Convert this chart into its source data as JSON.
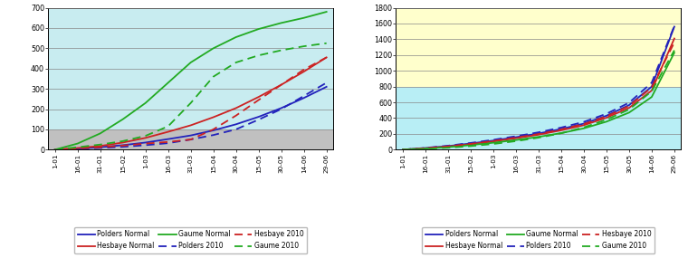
{
  "x_labels": [
    "1-01",
    "16-01",
    "31-01",
    "15-02",
    "1-03",
    "16-03",
    "31-03",
    "15-04",
    "30-04",
    "15-05",
    "30-05",
    "14-06",
    "29-06"
  ],
  "n_points": 13,
  "left": {
    "ylim": [
      0,
      700
    ],
    "yticks": [
      0,
      100,
      200,
      300,
      400,
      500,
      600,
      700
    ],
    "ytick_labels": [
      "0",
      "100",
      "200",
      "300",
      "400",
      "500",
      "600",
      "700"
    ],
    "bg_top": "#c8ecf0",
    "bg_bottom": "#c0c0c0",
    "bg_split": 100,
    "polders_normal": [
      0,
      5,
      12,
      22,
      35,
      52,
      70,
      95,
      125,
      162,
      205,
      255,
      310
    ],
    "hesbaye_normal": [
      0,
      8,
      18,
      35,
      58,
      88,
      120,
      160,
      205,
      260,
      320,
      385,
      455
    ],
    "gaume_normal": [
      0,
      30,
      80,
      150,
      230,
      330,
      430,
      500,
      555,
      595,
      625,
      650,
      680
    ],
    "polders_2010": [
      0,
      4,
      8,
      14,
      22,
      32,
      50,
      72,
      100,
      148,
      200,
      265,
      330
    ],
    "hesbaye_2010": [
      0,
      6,
      12,
      20,
      30,
      38,
      50,
      100,
      168,
      245,
      320,
      395,
      455
    ],
    "gaume_2010": [
      0,
      12,
      25,
      42,
      68,
      115,
      230,
      360,
      430,
      465,
      490,
      510,
      525
    ]
  },
  "right": {
    "ylim": [
      0,
      1800
    ],
    "yticks": [
      0,
      200,
      400,
      600,
      800,
      1000,
      1200,
      1400,
      1600,
      1800
    ],
    "ytick_labels": [
      "0",
      "200",
      "400",
      "600",
      "800",
      "1000",
      "1200",
      "1400",
      "1600",
      "1800"
    ],
    "bg_top": "#ffffcc",
    "bg_bottom": "#b8eef5",
    "bg_split": 800,
    "polders_normal": [
      0,
      20,
      45,
      78,
      115,
      158,
      205,
      262,
      330,
      430,
      565,
      800,
      1560
    ],
    "hesbaye_normal": [
      0,
      18,
      40,
      70,
      105,
      145,
      190,
      245,
      310,
      405,
      530,
      750,
      1410
    ],
    "gaume_normal": [
      0,
      14,
      32,
      58,
      88,
      122,
      162,
      210,
      270,
      355,
      470,
      668,
      1230
    ],
    "polders_2010": [
      0,
      22,
      50,
      85,
      125,
      170,
      220,
      280,
      352,
      455,
      595,
      850,
      1570
    ],
    "hesbaye_2010": [
      0,
      19,
      42,
      73,
      110,
      152,
      198,
      256,
      325,
      422,
      555,
      790,
      1360
    ],
    "gaume_2010": [
      0,
      10,
      24,
      45,
      72,
      108,
      152,
      208,
      282,
      380,
      510,
      740,
      1260
    ]
  },
  "colors": {
    "polders": "#2222bb",
    "hesbaye": "#cc2222",
    "gaume": "#22aa22"
  }
}
